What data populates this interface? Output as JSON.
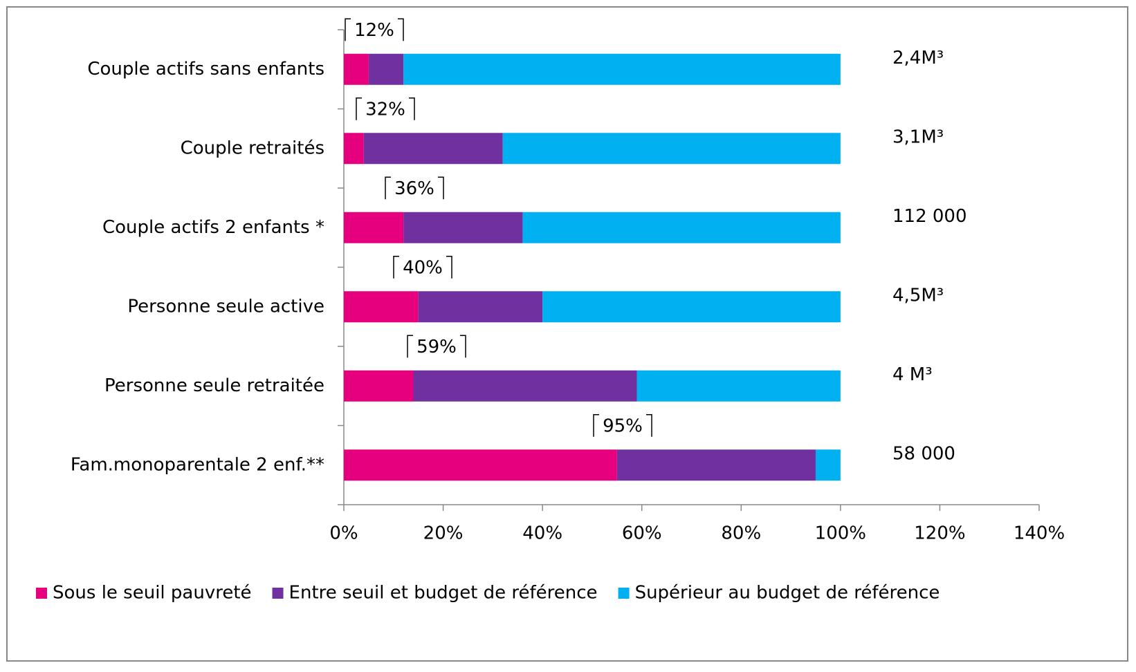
{
  "chart_data": {
    "type": "stacked-bar-horizontal",
    "categories": [
      "Couple actifs sans enfants",
      "Couple retraités",
      "Couple actifs 2  enfants *",
      "Personne seule active",
      "Personne seule retraitée",
      "Fam.monoparentale 2 enf.**"
    ],
    "series": [
      {
        "name": "Sous le seuil pauvreté",
        "color": "#e6007e",
        "values": [
          5,
          4,
          12,
          15,
          14,
          55
        ]
      },
      {
        "name": "Entre seuil et budget de référence",
        "color": "#7030a0",
        "values": [
          7,
          28,
          24,
          25,
          45,
          40
        ]
      },
      {
        "name": "Supérieur au budget de référence",
        "color": "#00b0f0",
        "values": [
          88,
          68,
          64,
          60,
          41,
          5
        ]
      }
    ],
    "bracket_labels": [
      "12%",
      "32%",
      "36%",
      "40%",
      "59%",
      "95%"
    ],
    "right_labels": [
      "2,4M³",
      "3,1M³",
      "112 000",
      "4,5M³",
      "4 M³",
      "58 000"
    ],
    "xlim": [
      0,
      140
    ],
    "xticks": [
      {
        "value": 0,
        "label": "0%"
      },
      {
        "value": 20,
        "label": "20%"
      },
      {
        "value": 40,
        "label": "40%"
      },
      {
        "value": 60,
        "label": "60%"
      },
      {
        "value": 80,
        "label": "80%"
      },
      {
        "value": 100,
        "label": "100%"
      },
      {
        "value": 120,
        "label": "120%"
      },
      {
        "value": 140,
        "label": "140%"
      }
    ],
    "grid": false,
    "legend": "bottom"
  }
}
